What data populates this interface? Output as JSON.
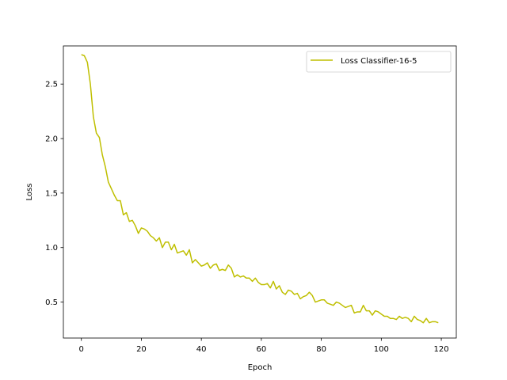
{
  "chart_data": {
    "type": "line",
    "title": "",
    "xlabel": "Epoch",
    "ylabel": "Loss",
    "xlim": [
      -6,
      125
    ],
    "ylim": [
      0.17,
      2.85
    ],
    "xticks": [
      "0",
      "20",
      "40",
      "60",
      "80",
      "100",
      "120"
    ],
    "yticks": [
      "0.5",
      "1.0",
      "1.5",
      "2.0",
      "2.5"
    ],
    "grid": false,
    "legend_position": "top-right",
    "series": [
      {
        "name": "Loss Classifier-16-5",
        "color": "#bfbf00",
        "x": [
          0,
          1,
          2,
          3,
          4,
          5,
          6,
          7,
          8,
          9,
          10,
          11,
          12,
          13,
          14,
          15,
          16,
          17,
          18,
          19,
          20,
          21,
          22,
          23,
          24,
          25,
          26,
          27,
          28,
          29,
          30,
          31,
          32,
          33,
          34,
          35,
          36,
          37,
          38,
          39,
          40,
          41,
          42,
          43,
          44,
          45,
          46,
          47,
          48,
          49,
          50,
          51,
          52,
          53,
          54,
          55,
          56,
          57,
          58,
          59,
          60,
          61,
          62,
          63,
          64,
          65,
          66,
          67,
          68,
          69,
          70,
          71,
          72,
          73,
          74,
          75,
          76,
          77,
          78,
          79,
          80,
          81,
          82,
          83,
          84,
          85,
          86,
          87,
          88,
          89,
          90,
          91,
          92,
          93,
          94,
          95,
          96,
          97,
          98,
          99,
          100,
          101,
          102,
          103,
          104,
          105,
          106,
          107,
          108,
          109,
          110,
          111,
          112,
          113,
          114,
          115,
          116,
          117,
          118,
          119
        ],
        "y": [
          2.77,
          2.76,
          2.7,
          2.5,
          2.2,
          2.05,
          2.01,
          1.85,
          1.74,
          1.6,
          1.54,
          1.48,
          1.43,
          1.43,
          1.3,
          1.32,
          1.24,
          1.25,
          1.2,
          1.13,
          1.18,
          1.17,
          1.15,
          1.11,
          1.09,
          1.06,
          1.09,
          1.0,
          1.05,
          1.05,
          0.98,
          1.03,
          0.95,
          0.96,
          0.97,
          0.93,
          0.98,
          0.86,
          0.89,
          0.86,
          0.83,
          0.84,
          0.86,
          0.81,
          0.84,
          0.85,
          0.79,
          0.8,
          0.79,
          0.84,
          0.81,
          0.73,
          0.75,
          0.73,
          0.74,
          0.72,
          0.72,
          0.69,
          0.72,
          0.68,
          0.66,
          0.66,
          0.67,
          0.63,
          0.69,
          0.62,
          0.65,
          0.59,
          0.57,
          0.61,
          0.6,
          0.57,
          0.58,
          0.53,
          0.55,
          0.56,
          0.59,
          0.56,
          0.5,
          0.51,
          0.52,
          0.52,
          0.49,
          0.48,
          0.47,
          0.5,
          0.49,
          0.47,
          0.45,
          0.46,
          0.47,
          0.4,
          0.41,
          0.41,
          0.47,
          0.42,
          0.42,
          0.38,
          0.42,
          0.41,
          0.39,
          0.37,
          0.37,
          0.35,
          0.35,
          0.34,
          0.37,
          0.35,
          0.36,
          0.35,
          0.32,
          0.37,
          0.34,
          0.33,
          0.31,
          0.35,
          0.31,
          0.32,
          0.32,
          0.31
        ]
      }
    ]
  }
}
